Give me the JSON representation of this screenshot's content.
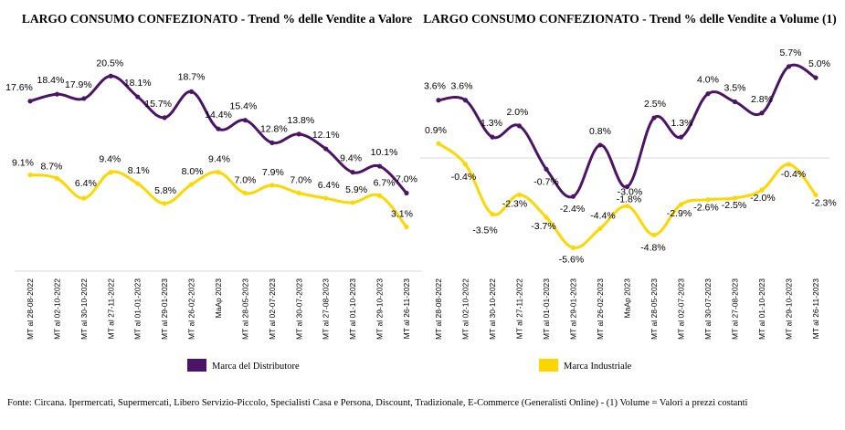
{
  "footnote": "Fonte: Circana. Ipermercati, Supermercati, Libero Servizio-Piccolo, Specialisti Casa e Persona, Discount, Tradizionale, E-Commerce (Generalisti Online) - (1) Volume = Valori a prezzi costanti",
  "colors": {
    "distributore": "#4B1464",
    "industriale": "#FFD700"
  },
  "legend_position": "bottom",
  "chart_data": [
    {
      "type": "line",
      "title": "LARGO CONSUMO CONFEZIONATO - Trend % delle Vendite a Valore",
      "categories": [
        "MT al 28-08-2022",
        "MT al 02-10-2022",
        "MT al 30-10-2022",
        "MT al 27-11-2022",
        "MT al 01-01-2023",
        "MT al 29-01-2023",
        "MT al 26-02-2023",
        "MaAp 2023",
        "MT al 28-05-2023",
        "MT al 02-07-2023",
        "MT al 30-07-2023",
        "MT al 27-08-2023",
        "MT al 01-10-2023",
        "MT al 29-10-2023",
        "MT al 26-11-2023"
      ],
      "ylim": [
        -2,
        24
      ],
      "series": [
        {
          "name": "Marca del Distributore",
          "values": [
            17.6,
            18.4,
            17.9,
            20.5,
            18.1,
            15.7,
            18.7,
            14.4,
            15.4,
            12.8,
            13.8,
            12.1,
            9.4,
            10.1,
            7.0
          ],
          "labels": [
            "17.6%",
            "18.4%",
            "17.9%",
            "20.5%",
            "18.1%",
            "15.7%",
            "18.7%",
            "14.4%",
            "15.4%",
            "12.8%",
            "13.8%",
            "12.1%",
            "9.4%",
            "10.1%",
            "7.0%"
          ]
        },
        {
          "name": "Marca Industriale",
          "values": [
            9.1,
            8.7,
            6.4,
            9.4,
            8.1,
            5.8,
            8.0,
            9.4,
            7.0,
            7.9,
            7.0,
            6.4,
            5.9,
            6.7,
            3.1
          ],
          "labels": [
            "9.1%",
            "8.7%",
            "6.4%",
            "9.4%",
            "8.1%",
            "5.8%",
            "8.0%",
            "9.4%",
            "7.0%",
            "7.9%",
            "7.0%",
            "6.4%",
            "5.9%",
            "6.7%",
            "3.1%"
          ]
        }
      ]
    },
    {
      "type": "line",
      "title": "LARGO CONSUMO CONFEZIONATO - Trend % delle Vendite a Volume (1)",
      "categories": [
        "MT al 28-08-2022",
        "MT al 02-10-2022",
        "MT al 30-10-2022",
        "MT al 27-11-2022",
        "MT al 01-01-2023",
        "MT al 29-01-2023",
        "MT al 26-02-2023",
        "MaAp 2023",
        "MT al 28-05-2023",
        "MT al 02-07-2023",
        "MT al 30-07-2023",
        "MT al 27-08-2023",
        "MT al 01-10-2023",
        "MT al 29-10-2023",
        "MT al 26-11-2023"
      ],
      "ylim": [
        -7,
        7
      ],
      "series": [
        {
          "name": "Marca del Distributore",
          "values": [
            3.6,
            3.6,
            1.3,
            2.0,
            -0.7,
            -2.4,
            0.8,
            -1.8,
            2.5,
            1.3,
            4.0,
            3.5,
            2.8,
            5.7,
            5.0
          ],
          "labels": [
            "3.6%",
            "3.6%",
            "1.3%",
            "2.0%",
            "-0.7%",
            "-2.4%",
            "0.8%",
            "-1.8%",
            "2.5%",
            "1.3%",
            "4.0%",
            "3.5%",
            "2.8%",
            "5.7%",
            "5.0%"
          ]
        },
        {
          "name": "Marca Industriale",
          "values": [
            0.9,
            -0.4,
            -3.5,
            -2.3,
            -3.7,
            -5.6,
            -4.4,
            -3.0,
            -4.8,
            -2.9,
            -2.6,
            -2.5,
            -2.0,
            -0.4,
            -2.3
          ],
          "labels": [
            "0.9%",
            "-0.4%",
            "-3.5%",
            "-2.3%",
            "-3.7%",
            "-5.6%",
            "-4.4%",
            "-3.0%",
            "-4.8%",
            "-2.9%",
            "-2.6%",
            "-2.5%",
            "-2.0%",
            "-0.4%",
            "-2.3%"
          ]
        }
      ]
    }
  ]
}
